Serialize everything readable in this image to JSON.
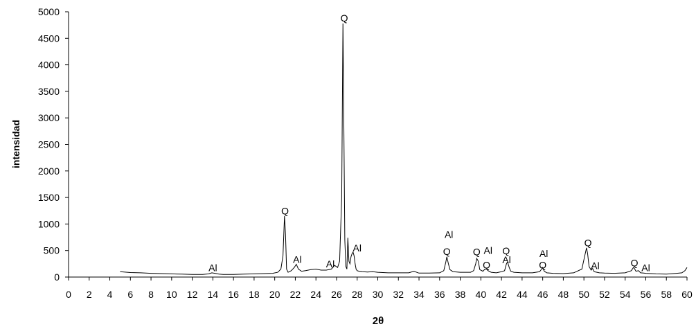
{
  "chart_data": {
    "type": "line",
    "title": "",
    "xlabel": "2θ",
    "ylabel": "intensidad",
    "xlim": [
      0,
      60
    ],
    "ylim": [
      0,
      5000
    ],
    "xticks": [
      "0",
      "2",
      "4",
      "6",
      "8",
      "10",
      "12",
      "14",
      "16",
      "18",
      "20",
      "22",
      "24",
      "26",
      "28",
      "30",
      "32",
      "34",
      "36",
      "38",
      "40",
      "42",
      "44",
      "46",
      "48",
      "50",
      "52",
      "54",
      "56",
      "58",
      "60"
    ],
    "yticks": [
      "0",
      "500",
      "1000",
      "1500",
      "2000",
      "2500",
      "3000",
      "3500",
      "4000",
      "4500",
      "5000"
    ],
    "grid": false,
    "legend": "none",
    "series": [
      {
        "x": [
          5,
          6,
          7,
          8,
          9,
          10,
          11,
          12,
          13,
          13.6,
          13.9,
          14.2,
          14.6,
          15,
          16,
          17,
          18,
          19,
          19.8,
          20.3,
          20.6,
          20.8,
          20.95,
          21.05,
          21.15,
          21.3,
          21.6,
          21.9,
          22.1,
          22.3,
          22.6,
          23,
          23.5,
          24,
          24.5,
          25,
          25.5,
          25.8,
          26.1,
          26.3,
          26.5,
          26.62,
          26.7,
          26.8,
          26.9,
          27.0,
          27.1,
          27.2,
          27.3,
          27.4,
          27.5,
          27.6,
          27.7,
          27.8,
          27.9,
          28.0,
          28.2,
          28.5,
          29,
          29.5,
          30,
          31,
          32,
          33,
          33.5,
          34,
          35,
          36,
          36.4,
          36.6,
          36.7,
          36.85,
          37,
          37.3,
          38,
          39,
          39.3,
          39.5,
          39.6,
          39.75,
          39.9,
          40.2,
          40.4,
          40.55,
          40.7,
          41,
          41.5,
          42,
          42.3,
          42.5,
          42.6,
          42.75,
          42.9,
          43.2,
          44,
          45,
          45.7,
          45.9,
          46.0,
          46.15,
          46.4,
          47,
          48,
          49,
          49.8,
          50.1,
          50.25,
          50.35,
          50.5,
          50.7,
          50.85,
          51,
          51.5,
          52,
          53,
          54,
          54.6,
          54.8,
          54.9,
          55.05,
          55.3,
          55.5,
          55.8,
          56,
          57,
          58,
          59,
          59.5,
          59.8,
          60
        ],
        "y": [
          100,
          85,
          80,
          70,
          65,
          60,
          55,
          50,
          50,
          60,
          80,
          70,
          55,
          50,
          50,
          55,
          60,
          65,
          70,
          90,
          150,
          400,
          1150,
          800,
          150,
          90,
          120,
          180,
          240,
          150,
          110,
          120,
          140,
          150,
          130,
          130,
          150,
          220,
          180,
          300,
          1500,
          4780,
          3000,
          700,
          200,
          150,
          740,
          300,
          250,
          380,
          440,
          470,
          400,
          250,
          150,
          120,
          110,
          100,
          95,
          100,
          90,
          80,
          80,
          80,
          110,
          75,
          75,
          80,
          120,
          280,
          380,
          250,
          140,
          100,
          90,
          90,
          120,
          250,
          350,
          300,
          140,
          110,
          150,
          150,
          120,
          90,
          80,
          100,
          120,
          260,
          280,
          180,
          110,
          90,
          80,
          80,
          100,
          150,
          180,
          110,
          80,
          70,
          65,
          80,
          150,
          420,
          550,
          450,
          200,
          130,
          160,
          100,
          80,
          75,
          70,
          80,
          120,
          180,
          160,
          110,
          120,
          80,
          75,
          70,
          60,
          55,
          70,
          80,
          120,
          180
        ]
      }
    ],
    "annotations": [
      {
        "text": "Al",
        "x": 14,
        "y": 110
      },
      {
        "text": "Q",
        "x": 21.0,
        "y": 1180
      },
      {
        "text": "Al",
        "x": 22.2,
        "y": 270
      },
      {
        "text": "Al",
        "x": 25.4,
        "y": 180
      },
      {
        "text": "Q",
        "x": 26.75,
        "y": 4820
      },
      {
        "text": "Al",
        "x": 28.0,
        "y": 480
      },
      {
        "text": "Al",
        "x": 36.9,
        "y": 740
      },
      {
        "text": "Q",
        "x": 36.7,
        "y": 420
      },
      {
        "text": "Q",
        "x": 39.6,
        "y": 410
      },
      {
        "text": "Al",
        "x": 40.7,
        "y": 440
      },
      {
        "text": "Q",
        "x": 40.55,
        "y": 160
      },
      {
        "text": "Q",
        "x": 42.45,
        "y": 430
      },
      {
        "text": "Al",
        "x": 42.5,
        "y": 260
      },
      {
        "text": "Al",
        "x": 46.1,
        "y": 380
      },
      {
        "text": "Q",
        "x": 46.0,
        "y": 160
      },
      {
        "text": "Q",
        "x": 50.4,
        "y": 580
      },
      {
        "text": "Al",
        "x": 51.1,
        "y": 150
      },
      {
        "text": "Q",
        "x": 54.9,
        "y": 200
      },
      {
        "text": "Al",
        "x": 56.0,
        "y": 110
      }
    ],
    "colors": {
      "line": "#000000",
      "axis": "#000000",
      "background": "#ffffff"
    }
  }
}
